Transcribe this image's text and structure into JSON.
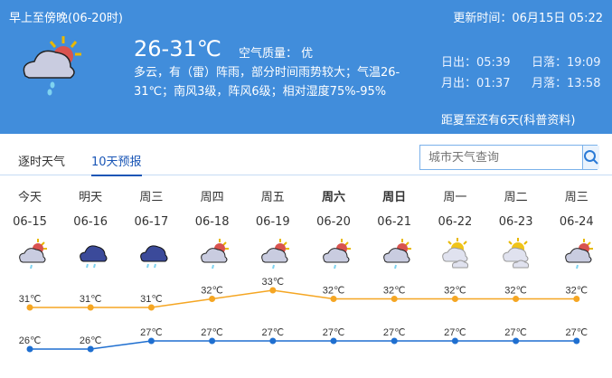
{
  "header": {
    "period": "早上至傍晚(06-20时)",
    "update_time": "更新时间：06月15日 05:22",
    "temperature": "26-31℃",
    "air_quality": "空气质量： 优",
    "description": "多云，有（雷）阵雨，部分时间雨势较大；气温26-31℃；南风3级，阵风6级；相对湿度75%-95%",
    "sunrise": "日出：05:39",
    "sunset": "日落：19:09",
    "moonrise": "月出：01:37",
    "moonset": "月落：13:58",
    "tip": "距夏至还有6天(科普资料)",
    "icon": "partly-cloudy-rain-icon"
  },
  "tabs": [
    {
      "label": "逐时天气",
      "active": false
    },
    {
      "label": "10天预报",
      "active": true
    }
  ],
  "search": {
    "placeholder": "城市天气查询",
    "icon": "search-icon"
  },
  "days": [
    {
      "weekday": "今天",
      "date": "06-15",
      "icon": "partly-cloudy-rain",
      "high": "31℃",
      "low": "26℃"
    },
    {
      "weekday": "明天",
      "date": "06-16",
      "icon": "heavy-rain",
      "high": "31℃",
      "low": "26℃"
    },
    {
      "weekday": "周三",
      "date": "06-17",
      "icon": "heavy-rain",
      "high": "31℃",
      "low": "27℃"
    },
    {
      "weekday": "周四",
      "date": "06-18",
      "icon": "partly-cloudy-rain",
      "high": "32℃",
      "low": "27℃"
    },
    {
      "weekday": "周五",
      "date": "06-19",
      "icon": "partly-cloudy-rain",
      "high": "33℃",
      "low": "27℃"
    },
    {
      "weekday": "周六",
      "date": "06-20",
      "icon": "partly-cloudy-rain",
      "high": "32℃",
      "low": "27℃",
      "weekend": true
    },
    {
      "weekday": "周日",
      "date": "06-21",
      "icon": "partly-cloudy-rain",
      "high": "32℃",
      "low": "27℃",
      "weekend": true
    },
    {
      "weekday": "周一",
      "date": "06-22",
      "icon": "partly-cloudy",
      "high": "32℃",
      "low": "27℃"
    },
    {
      "weekday": "周二",
      "date": "06-23",
      "icon": "partly-cloudy",
      "high": "32℃",
      "low": "27℃"
    },
    {
      "weekday": "周三",
      "date": "06-24",
      "icon": "partly-cloudy-rain",
      "high": "32℃",
      "low": "27℃"
    }
  ],
  "chart_data": {
    "type": "line",
    "categories": [
      "06-15",
      "06-16",
      "06-17",
      "06-18",
      "06-19",
      "06-20",
      "06-21",
      "06-22",
      "06-23",
      "06-24"
    ],
    "series": [
      {
        "values": [
          31,
          31,
          31,
          32,
          33,
          32,
          32,
          32,
          32,
          32
        ],
        "color": "#f5a623"
      },
      {
        "values": [
          26,
          26,
          27,
          27,
          27,
          27,
          27,
          27,
          27,
          27
        ],
        "color": "#1f6fd0"
      }
    ]
  }
}
